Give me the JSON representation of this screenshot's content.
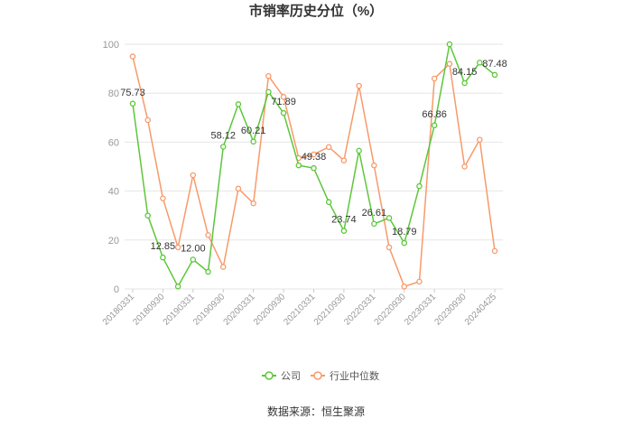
{
  "chart_data": {
    "type": "line",
    "title": "市销率历史分位（%）",
    "source": "数据来源：恒生聚源",
    "ylim": [
      0,
      100
    ],
    "yticks": [
      0,
      20,
      40,
      60,
      80,
      100
    ],
    "grid": true,
    "legend_position": "bottom",
    "x_tick_labels": [
      "20180331",
      "20180930",
      "20190331",
      "20190930",
      "20200331",
      "20200930",
      "20210331",
      "20210930",
      "20220331",
      "20220930",
      "20230331",
      "20230930",
      "20240425"
    ],
    "x": [
      "20180331",
      "20180630",
      "20180930",
      "20181231",
      "20190331",
      "20190630",
      "20190930",
      "20191231",
      "20200331",
      "20200630",
      "20200930",
      "20201231",
      "20210331",
      "20210630",
      "20210930",
      "20211231",
      "20220331",
      "20220630",
      "20220930",
      "20221231",
      "20230331",
      "20230630",
      "20230930",
      "20231231",
      "20240425"
    ],
    "series": [
      {
        "name": "公司",
        "color": "#5cc73a",
        "values": [
          75.73,
          30.0,
          12.85,
          1.0,
          12.0,
          7.0,
          58.12,
          75.5,
          60.21,
          80.5,
          71.89,
          50.5,
          49.38,
          35.5,
          23.74,
          56.5,
          26.61,
          29.0,
          18.79,
          42.0,
          66.86,
          100.0,
          84.15,
          92.5,
          87.48
        ]
      },
      {
        "name": "行业中位数",
        "color": "#f79a6a",
        "values": [
          95.0,
          69.0,
          37.0,
          17.0,
          46.5,
          22.0,
          9.0,
          41.0,
          35.0,
          87.0,
          78.5,
          53.5,
          55.0,
          58.0,
          52.5,
          83.0,
          50.5,
          17.0,
          1.0,
          3.0,
          86.0,
          92.0,
          50.0,
          61.0,
          15.5
        ]
      }
    ],
    "data_labels": [
      {
        "index": 0,
        "text": "75.73"
      },
      {
        "index": 2,
        "text": "12.85"
      },
      {
        "index": 4,
        "text": "12.00"
      },
      {
        "index": 6,
        "text": "58.12"
      },
      {
        "index": 8,
        "text": "60.21"
      },
      {
        "index": 10,
        "text": "71.89"
      },
      {
        "index": 12,
        "text": "49.38"
      },
      {
        "index": 14,
        "text": "23.74"
      },
      {
        "index": 16,
        "text": "26.61"
      },
      {
        "index": 18,
        "text": "18.79"
      },
      {
        "index": 20,
        "text": "66.86"
      },
      {
        "index": 22,
        "text": "84.15"
      },
      {
        "index": 24,
        "text": "87.48"
      }
    ]
  }
}
